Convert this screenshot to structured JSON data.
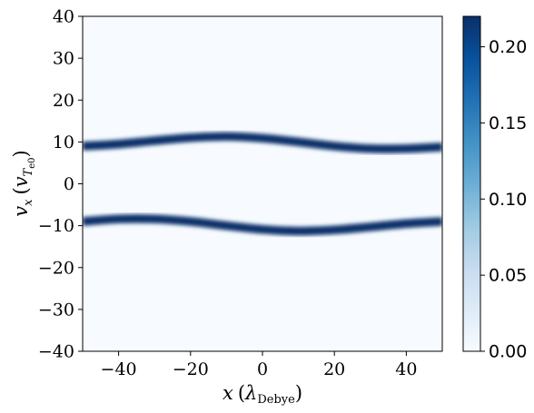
{
  "chart_data": {
    "type": "heatmap",
    "title": "",
    "xlabel": "x (λDebye)",
    "ylabel": "vx (vTe0)",
    "xlabel_parts": {
      "var": "x",
      "open": "(",
      "sym": "λ",
      "sub": "Debye",
      "close": ")"
    },
    "ylabel_parts": {
      "var": "v",
      "var_sub": "x",
      "open": "(",
      "sym": "v",
      "sym_sub": "T",
      "sym_subsub": "e0",
      "close": ")"
    },
    "xlim": [
      -50,
      50
    ],
    "ylim": [
      -40,
      40
    ],
    "x_ticks": [
      -40,
      -20,
      0,
      20,
      40
    ],
    "x_tick_labels": [
      "−40",
      "−20",
      "0",
      "20",
      "40"
    ],
    "y_ticks": [
      -40,
      -30,
      -20,
      -10,
      0,
      10,
      20,
      30,
      40
    ],
    "y_tick_labels": [
      "−40",
      "−30",
      "−20",
      "−10",
      "0",
      "10",
      "20",
      "30",
      "40"
    ],
    "colormap": "Blues",
    "colorbar": {
      "min": 0.0,
      "max": 0.22,
      "ticks": [
        0.0,
        0.05,
        0.1,
        0.15,
        0.2
      ],
      "tick_labels": [
        "0.00",
        "0.05",
        "0.10",
        "0.15",
        "0.20"
      ]
    },
    "series": [
      {
        "x": [
          -50,
          -40,
          -30,
          -20,
          -10,
          0,
          10,
          20,
          30,
          40,
          50
        ],
        "y": [
          9.0,
          9.5,
          10.3,
          11.0,
          11.3,
          10.9,
          10.0,
          9.0,
          8.4,
          8.4,
          8.8
        ]
      },
      {
        "x": [
          -50,
          -40,
          -30,
          -20,
          -10,
          0,
          10,
          20,
          30,
          40,
          50
        ],
        "y": [
          -9.0,
          -8.4,
          -8.4,
          -9.0,
          -10.0,
          -10.9,
          -11.3,
          -11.0,
          -10.3,
          -9.5,
          -9.0
        ]
      }
    ],
    "beam_peak_value": 0.22,
    "beam_thermal_width": 0.8,
    "grid": false
  },
  "colors": {
    "background_low": "#f7fbff",
    "high": "#08306b"
  }
}
